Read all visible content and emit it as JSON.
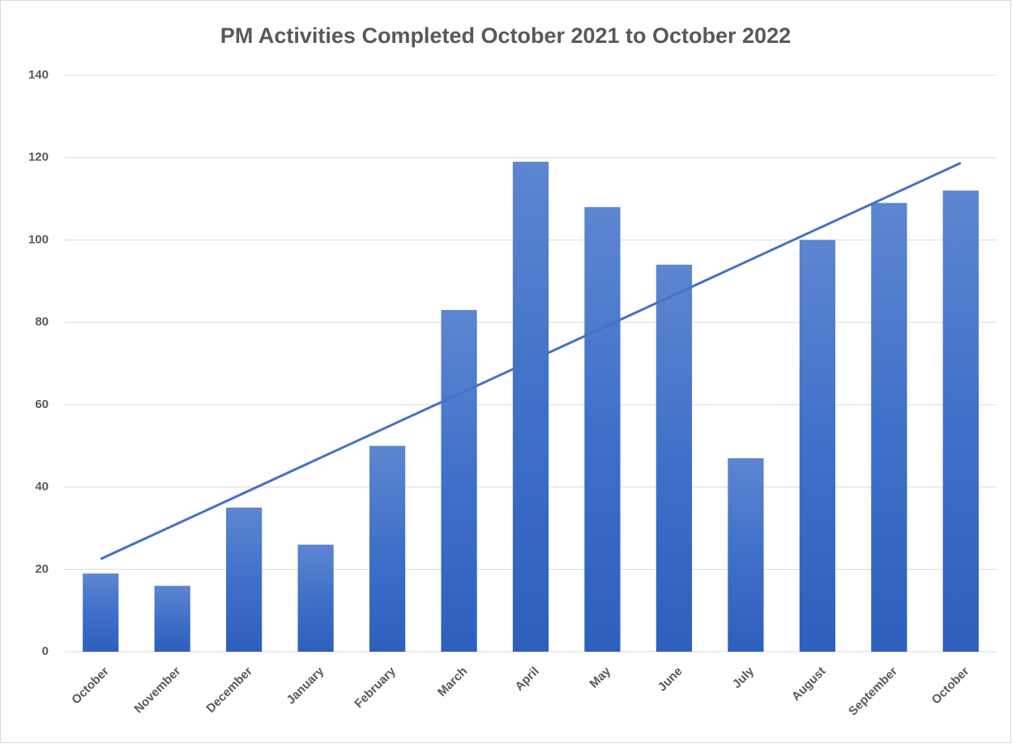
{
  "chart_data": {
    "type": "bar",
    "title": "PM Activities Completed October 2021 to October 2022",
    "categories": [
      "October",
      "November",
      "December",
      "January",
      "February",
      "March",
      "April",
      "May",
      "June",
      "July",
      "August",
      "September",
      "October"
    ],
    "values": [
      19,
      16,
      35,
      26,
      50,
      83,
      119,
      108,
      94,
      47,
      100,
      109,
      112
    ],
    "color": "#4472c4",
    "trendline": "linear",
    "ylim": [
      0,
      140
    ],
    "yticks": [
      0,
      20,
      40,
      60,
      80,
      100,
      120,
      140
    ],
    "grid": true
  }
}
